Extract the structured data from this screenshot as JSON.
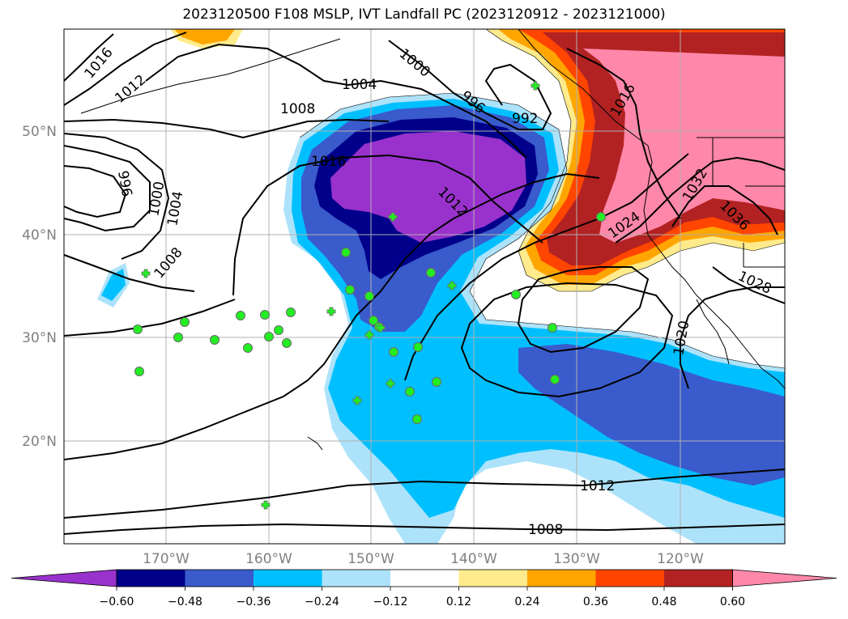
{
  "title": "2023120500 F108 MSLP, IVT Landfall PC (2023120912 - 2023121000)",
  "lat_ticks": [
    "50°N",
    "40°N",
    "30°N",
    "20°N"
  ],
  "lon_ticks": [
    "170°W",
    "160°W",
    "150°W",
    "140°W",
    "130°W",
    "120°W"
  ],
  "isobar_labels": [
    "1016",
    "1012",
    "1008",
    "1004",
    "1000",
    "996",
    "996",
    "992",
    "1016",
    "1012",
    "1008",
    "1004",
    "1000",
    "1016",
    "1024",
    "1032",
    "1036",
    "1028",
    "1020",
    "1012",
    "1008"
  ],
  "colorbar": {
    "ticks": [
      "−0.60",
      "−0.48",
      "−0.36",
      "−0.24",
      "−0.12",
      "0.12",
      "0.24",
      "0.36",
      "0.48",
      "0.60"
    ],
    "colors": [
      "#9932CC",
      "#00008B",
      "#3A5BCB",
      "#00BFFF",
      "#ADE3FA",
      "#FFFFFF",
      "#FFEB8C",
      "#FFA500",
      "#FF4500",
      "#B22222",
      "#FF88AA"
    ]
  },
  "marker_color": "#22EE22"
}
